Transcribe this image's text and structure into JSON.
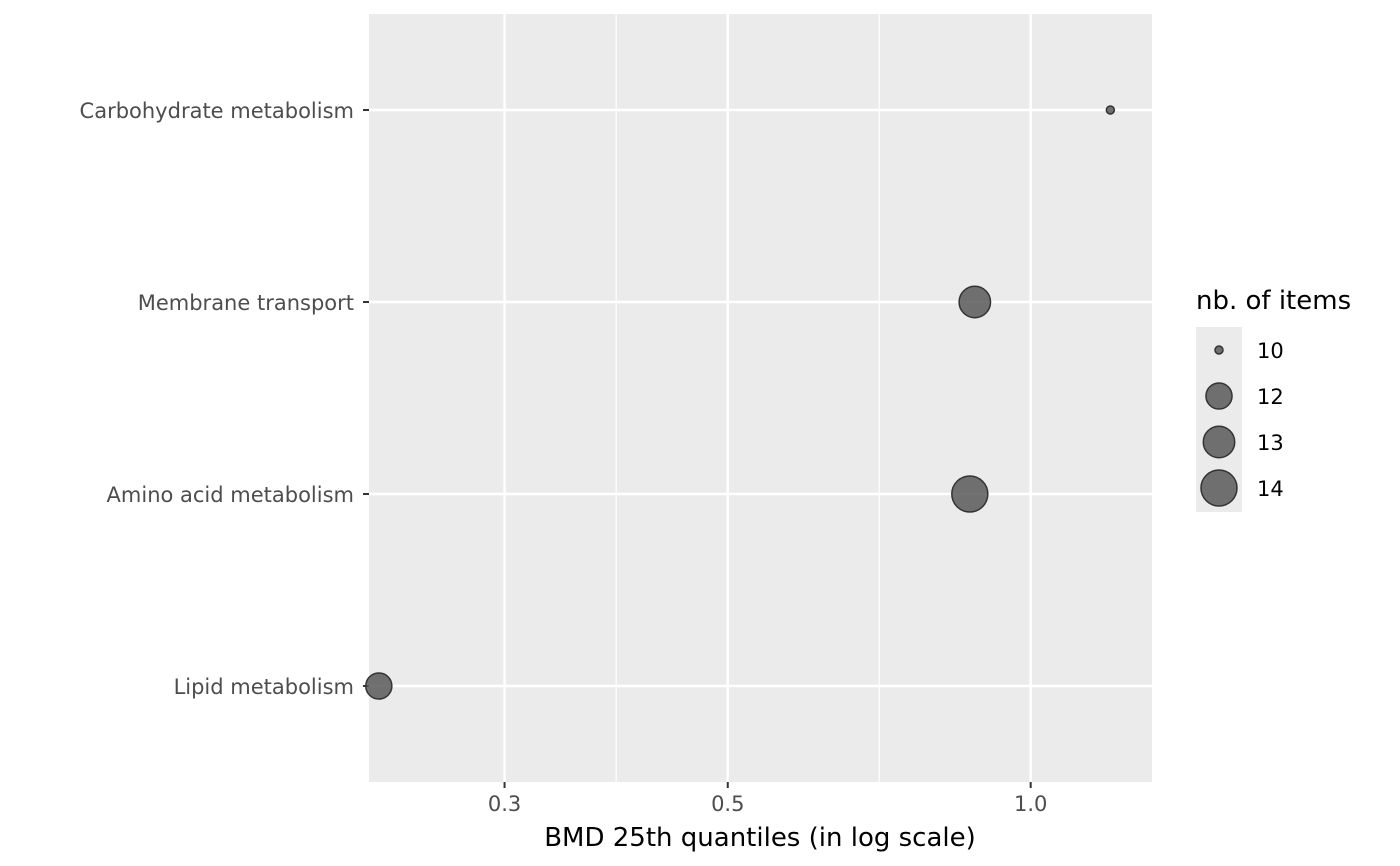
{
  "chart_data": {
    "type": "scatter",
    "title": "",
    "xlabel": "BMD 25th quantiles (in log scale)",
    "ylabel": "",
    "x_scale": "log",
    "xlim": [
      0.22,
      1.32
    ],
    "x_ticks": [
      {
        "value": 0.3,
        "label": "0.3"
      },
      {
        "value": 0.5,
        "label": "0.5"
      },
      {
        "value": 1.0,
        "label": "1.0"
      }
    ],
    "categories": [
      "Carbohydrate metabolism",
      "Membrane transport",
      "Amino acid metabolism",
      "Lipid metabolism"
    ],
    "points": [
      {
        "category": "Carbohydrate metabolism",
        "x": 1.2,
        "size": 10
      },
      {
        "category": "Membrane transport",
        "x": 0.88,
        "size": 13
      },
      {
        "category": "Amino acid metabolism",
        "x": 0.87,
        "size": 14
      },
      {
        "category": "Lipid metabolism",
        "x": 0.225,
        "size": 12
      }
    ],
    "legend": {
      "title": "nb. of items",
      "placement": "right",
      "entries": [
        {
          "label": "10",
          "size": 10
        },
        {
          "label": "12",
          "size": 12
        },
        {
          "label": "13",
          "size": 13
        },
        {
          "label": "14",
          "size": 14
        }
      ]
    },
    "grid": true,
    "colors": {
      "panel": "#ebebeb",
      "grid": "#ffffff",
      "point_fill": "#595959",
      "point_stroke": "#333333",
      "legend_key_bg": "#ebebeb"
    }
  }
}
